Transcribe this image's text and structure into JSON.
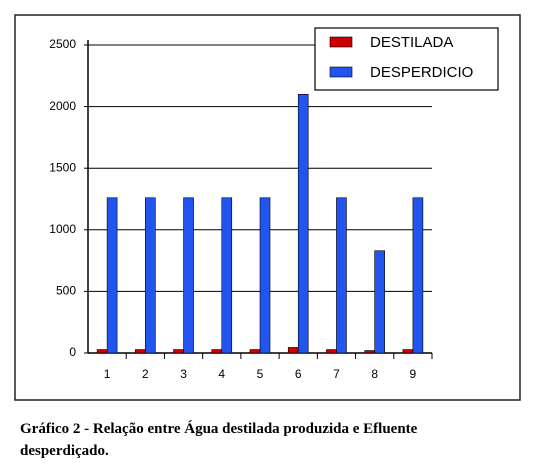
{
  "chart_data": {
    "type": "bar",
    "categories": [
      "1",
      "2",
      "3",
      "4",
      "5",
      "6",
      "7",
      "8",
      "9"
    ],
    "series": [
      {
        "name": "DESTILADA",
        "color": "#cc0000",
        "values": [
          28,
          28,
          28,
          28,
          28,
          45,
          28,
          20,
          28
        ]
      },
      {
        "name": "DESPERDICIO",
        "color": "#2255ee",
        "values": [
          1260,
          1260,
          1260,
          1260,
          1260,
          2100,
          1260,
          830,
          1260
        ]
      }
    ],
    "ylim": [
      0,
      2500
    ],
    "yticks": [
      0,
      500,
      1000,
      1500,
      2000,
      2500
    ],
    "grid": true,
    "legend": "top-right",
    "caption": "Gráfico 2 - Relação entre Água destilada produzida e Efluente desperdiçado."
  }
}
